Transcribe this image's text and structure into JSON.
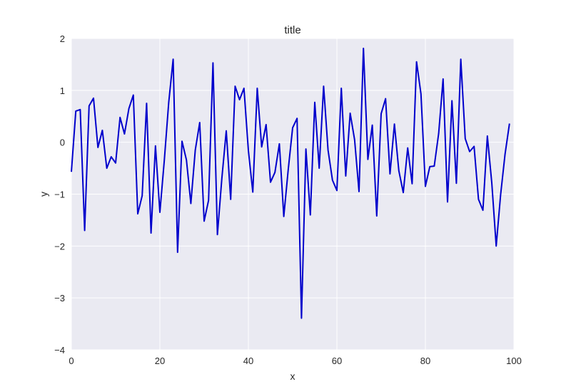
{
  "chart_data": {
    "type": "line",
    "title": "title",
    "xlabel": "x",
    "ylabel": "y",
    "xlim": [
      0,
      100
    ],
    "ylim": [
      -4,
      2
    ],
    "grid": true,
    "background_color": "#EAEAF2",
    "grid_color": "#FFFFFF",
    "x_ticks": [
      0,
      20,
      40,
      60,
      80,
      100
    ],
    "x_tick_labels": [
      "0",
      "20",
      "40",
      "60",
      "80",
      "100"
    ],
    "y_ticks": [
      2,
      1,
      0,
      -1,
      -2,
      -3,
      -4
    ],
    "y_tick_labels": [
      "2",
      "1",
      "0",
      "−1",
      "−2",
      "−3",
      "−4"
    ],
    "series": [
      {
        "color": "#0000CC",
        "x": [
          0,
          1,
          2,
          3,
          4,
          5,
          6,
          7,
          8,
          9,
          10,
          11,
          12,
          13,
          14,
          15,
          16,
          17,
          18,
          19,
          20,
          21,
          22,
          23,
          24,
          25,
          26,
          27,
          28,
          29,
          30,
          31,
          32,
          33,
          34,
          35,
          36,
          37,
          38,
          39,
          40,
          41,
          42,
          43,
          44,
          45,
          46,
          47,
          48,
          49,
          50,
          51,
          52,
          53,
          54,
          55,
          56,
          57,
          58,
          59,
          60,
          61,
          62,
          63,
          64,
          65,
          66,
          67,
          68,
          69,
          70,
          71,
          72,
          73,
          74,
          75,
          76,
          77,
          78,
          79,
          80,
          81,
          82,
          83,
          84,
          85,
          86,
          87,
          88,
          89,
          90,
          91,
          92,
          93,
          94,
          95,
          96,
          97,
          98,
          99
        ],
        "y": [
          -0.57,
          0.6,
          0.63,
          -1.7,
          0.7,
          0.85,
          -0.1,
          0.23,
          -0.5,
          -0.28,
          -0.4,
          0.48,
          0.16,
          0.65,
          0.91,
          -1.38,
          -1.03,
          0.75,
          -1.75,
          -0.07,
          -1.35,
          -0.35,
          0.77,
          1.6,
          -2.12,
          0.02,
          -0.34,
          -1.18,
          -0.15,
          0.38,
          -1.52,
          -1.12,
          1.53,
          -1.78,
          -0.7,
          0.22,
          -1.1,
          1.08,
          0.82,
          1.04,
          -0.16,
          -0.96,
          1.04,
          -0.09,
          0.34,
          -0.77,
          -0.58,
          -0.03,
          -1.43,
          -0.53,
          0.28,
          0.46,
          -3.39,
          -0.13,
          -1.4,
          0.77,
          -0.5,
          1.08,
          -0.15,
          -0.73,
          -0.93,
          1.04,
          -0.65,
          0.56,
          0.05,
          -0.95,
          1.81,
          -0.33,
          0.33,
          -1.42,
          0.55,
          0.84,
          -0.61,
          0.35,
          -0.55,
          -0.97,
          -0.11,
          -0.8,
          1.55,
          0.93,
          -0.85,
          -0.47,
          -0.46,
          0.17,
          1.22,
          -1.15,
          0.8,
          -0.79,
          1.6,
          0.07,
          -0.18,
          -0.08,
          -1.1,
          -1.31,
          0.12,
          -0.78,
          -2.0,
          -1.01,
          -0.23,
          0.36
        ]
      }
    ]
  }
}
